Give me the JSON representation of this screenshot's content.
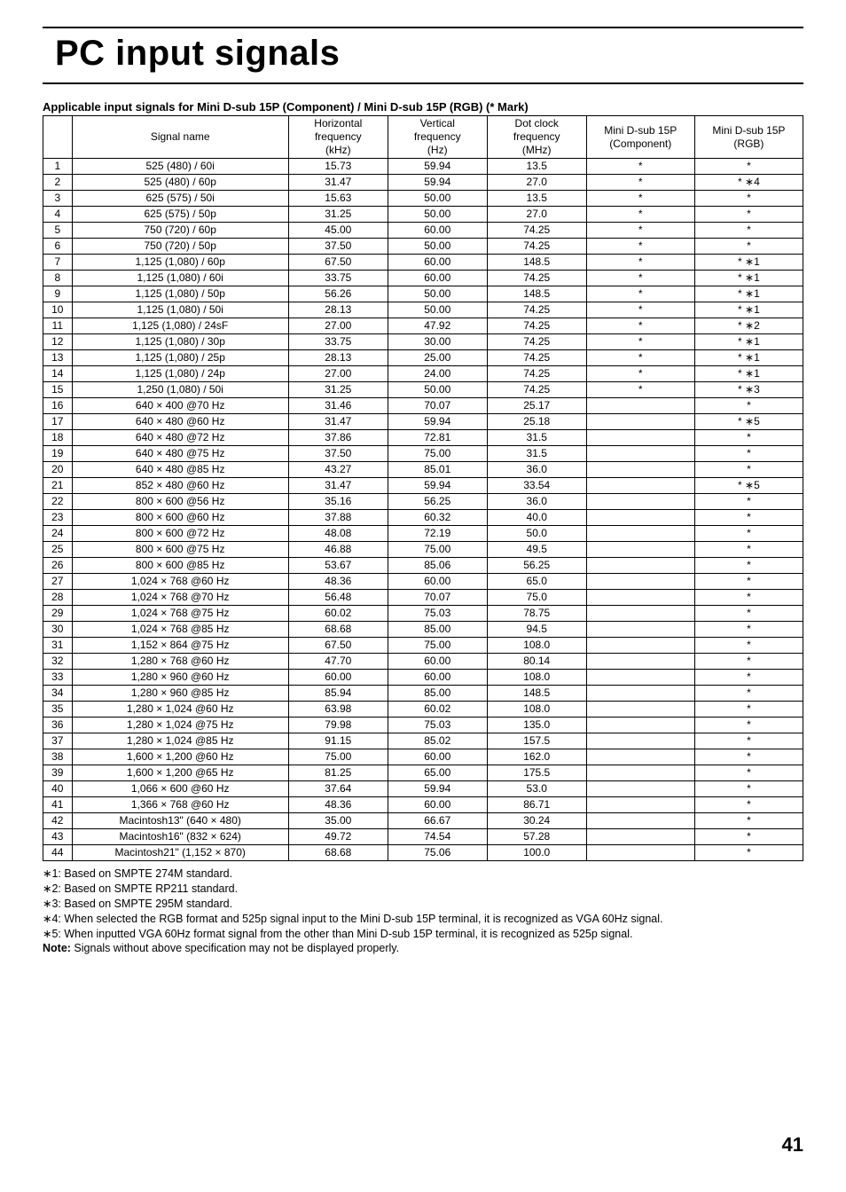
{
  "title": "PC input signals",
  "subtitle": "Applicable input signals for Mini D-sub 15P (Component) / Mini D-sub 15P (RGB) (* Mark)",
  "headers": {
    "idx": "",
    "signal": "Signal name",
    "hfreq": "Horizontal\nfrequency\n(kHz)",
    "vfreq": "Vertical\nfrequency\n(Hz)",
    "dclk": "Dot clock\nfrequency\n(MHz)",
    "comp": "Mini D-sub 15P\n(Component)",
    "rgb": "Mini D-sub 15P\n(RGB)"
  },
  "star": "*",
  "star_note": "∗",
  "rows": [
    {
      "i": "1",
      "s": "525 (480) / 60i",
      "h": "15.73",
      "v": "59.94",
      "d": "13.5",
      "c": "*",
      "r": "*"
    },
    {
      "i": "2",
      "s": "525 (480) / 60p",
      "h": "31.47",
      "v": "59.94",
      "d": "27.0",
      "c": "*",
      "r": "*  ∗4"
    },
    {
      "i": "3",
      "s": "625 (575) / 50i",
      "h": "15.63",
      "v": "50.00",
      "d": "13.5",
      "c": "*",
      "r": "*"
    },
    {
      "i": "4",
      "s": "625 (575) / 50p",
      "h": "31.25",
      "v": "50.00",
      "d": "27.0",
      "c": "*",
      "r": "*"
    },
    {
      "i": "5",
      "s": "750 (720) / 60p",
      "h": "45.00",
      "v": "60.00",
      "d": "74.25",
      "c": "*",
      "r": "*"
    },
    {
      "i": "6",
      "s": "750 (720) / 50p",
      "h": "37.50",
      "v": "50.00",
      "d": "74.25",
      "c": "*",
      "r": "*"
    },
    {
      "i": "7",
      "s": "1,125 (1,080) / 60p",
      "h": "67.50",
      "v": "60.00",
      "d": "148.5",
      "c": "*",
      "r": "*  ∗1"
    },
    {
      "i": "8",
      "s": "1,125 (1,080) / 60i",
      "h": "33.75",
      "v": "60.00",
      "d": "74.25",
      "c": "*",
      "r": "*  ∗1"
    },
    {
      "i": "9",
      "s": "1,125 (1,080) / 50p",
      "h": "56.26",
      "v": "50.00",
      "d": "148.5",
      "c": "*",
      "r": "*  ∗1"
    },
    {
      "i": "10",
      "s": "1,125 (1,080) / 50i",
      "h": "28.13",
      "v": "50.00",
      "d": "74.25",
      "c": "*",
      "r": "*  ∗1"
    },
    {
      "i": "11",
      "s": "1,125 (1,080) / 24sF",
      "h": "27.00",
      "v": "47.92",
      "d": "74.25",
      "c": "*",
      "r": "*  ∗2"
    },
    {
      "i": "12",
      "s": "1,125 (1,080) / 30p",
      "h": "33.75",
      "v": "30.00",
      "d": "74.25",
      "c": "*",
      "r": "*  ∗1"
    },
    {
      "i": "13",
      "s": "1,125 (1,080) / 25p",
      "h": "28.13",
      "v": "25.00",
      "d": "74.25",
      "c": "*",
      "r": "*  ∗1"
    },
    {
      "i": "14",
      "s": "1,125 (1,080) / 24p",
      "h": "27.00",
      "v": "24.00",
      "d": "74.25",
      "c": "*",
      "r": "*  ∗1"
    },
    {
      "i": "15",
      "s": "1,250 (1,080) / 50i",
      "h": "31.25",
      "v": "50.00",
      "d": "74.25",
      "c": "*",
      "r": "*  ∗3"
    },
    {
      "i": "16",
      "s": "640 × 400 @70 Hz",
      "h": "31.46",
      "v": "70.07",
      "d": "25.17",
      "c": "",
      "r": "*"
    },
    {
      "i": "17",
      "s": "640 × 480 @60 Hz",
      "h": "31.47",
      "v": "59.94",
      "d": "25.18",
      "c": "",
      "r": "*  ∗5"
    },
    {
      "i": "18",
      "s": "640 × 480 @72 Hz",
      "h": "37.86",
      "v": "72.81",
      "d": "31.5",
      "c": "",
      "r": "*"
    },
    {
      "i": "19",
      "s": "640 × 480 @75 Hz",
      "h": "37.50",
      "v": "75.00",
      "d": "31.5",
      "c": "",
      "r": "*"
    },
    {
      "i": "20",
      "s": "640 × 480 @85 Hz",
      "h": "43.27",
      "v": "85.01",
      "d": "36.0",
      "c": "",
      "r": "*"
    },
    {
      "i": "21",
      "s": "852 × 480 @60 Hz",
      "h": "31.47",
      "v": "59.94",
      "d": "33.54",
      "c": "",
      "r": "*  ∗5"
    },
    {
      "i": "22",
      "s": "800 × 600 @56 Hz",
      "h": "35.16",
      "v": "56.25",
      "d": "36.0",
      "c": "",
      "r": "*"
    },
    {
      "i": "23",
      "s": "800 × 600 @60 Hz",
      "h": "37.88",
      "v": "60.32",
      "d": "40.0",
      "c": "",
      "r": "*"
    },
    {
      "i": "24",
      "s": "800 × 600 @72 Hz",
      "h": "48.08",
      "v": "72.19",
      "d": "50.0",
      "c": "",
      "r": "*"
    },
    {
      "i": "25",
      "s": "800 × 600 @75 Hz",
      "h": "46.88",
      "v": "75.00",
      "d": "49.5",
      "c": "",
      "r": "*"
    },
    {
      "i": "26",
      "s": "800 × 600 @85 Hz",
      "h": "53.67",
      "v": "85.06",
      "d": "56.25",
      "c": "",
      "r": "*"
    },
    {
      "i": "27",
      "s": "1,024 × 768 @60 Hz",
      "h": "48.36",
      "v": "60.00",
      "d": "65.0",
      "c": "",
      "r": "*"
    },
    {
      "i": "28",
      "s": "1,024 × 768 @70 Hz",
      "h": "56.48",
      "v": "70.07",
      "d": "75.0",
      "c": "",
      "r": "*"
    },
    {
      "i": "29",
      "s": "1,024 × 768 @75 Hz",
      "h": "60.02",
      "v": "75.03",
      "d": "78.75",
      "c": "",
      "r": "*"
    },
    {
      "i": "30",
      "s": "1,024 × 768 @85 Hz",
      "h": "68.68",
      "v": "85.00",
      "d": "94.5",
      "c": "",
      "r": "*"
    },
    {
      "i": "31",
      "s": "1,152 × 864 @75 Hz",
      "h": "67.50",
      "v": "75.00",
      "d": "108.0",
      "c": "",
      "r": "*"
    },
    {
      "i": "32",
      "s": "1,280 × 768 @60 Hz",
      "h": "47.70",
      "v": "60.00",
      "d": "80.14",
      "c": "",
      "r": "*"
    },
    {
      "i": "33",
      "s": "1,280 × 960 @60 Hz",
      "h": "60.00",
      "v": "60.00",
      "d": "108.0",
      "c": "",
      "r": "*"
    },
    {
      "i": "34",
      "s": "1,280 × 960 @85 Hz",
      "h": "85.94",
      "v": "85.00",
      "d": "148.5",
      "c": "",
      "r": "*"
    },
    {
      "i": "35",
      "s": "1,280 × 1,024 @60 Hz",
      "h": "63.98",
      "v": "60.02",
      "d": "108.0",
      "c": "",
      "r": "*"
    },
    {
      "i": "36",
      "s": "1,280 × 1,024 @75 Hz",
      "h": "79.98",
      "v": "75.03",
      "d": "135.0",
      "c": "",
      "r": "*"
    },
    {
      "i": "37",
      "s": "1,280 × 1,024 @85 Hz",
      "h": "91.15",
      "v": "85.02",
      "d": "157.5",
      "c": "",
      "r": "*"
    },
    {
      "i": "38",
      "s": "1,600 × 1,200 @60 Hz",
      "h": "75.00",
      "v": "60.00",
      "d": "162.0",
      "c": "",
      "r": "*"
    },
    {
      "i": "39",
      "s": "1,600 × 1,200 @65 Hz",
      "h": "81.25",
      "v": "65.00",
      "d": "175.5",
      "c": "",
      "r": "*"
    },
    {
      "i": "40",
      "s": "1,066 × 600 @60 Hz",
      "h": "37.64",
      "v": "59.94",
      "d": "53.0",
      "c": "",
      "r": "*"
    },
    {
      "i": "41",
      "s": "1,366 × 768 @60 Hz",
      "h": "48.36",
      "v": "60.00",
      "d": "86.71",
      "c": "",
      "r": "*"
    },
    {
      "i": "42",
      "s": "Macintosh13\" (640 × 480)",
      "h": "35.00",
      "v": "66.67",
      "d": "30.24",
      "c": "",
      "r": "*"
    },
    {
      "i": "43",
      "s": "Macintosh16\" (832 × 624)",
      "h": "49.72",
      "v": "74.54",
      "d": "57.28",
      "c": "",
      "r": "*"
    },
    {
      "i": "44",
      "s": "Macintosh21\" (1,152 × 870)",
      "h": "68.68",
      "v": "75.06",
      "d": "100.0",
      "c": "",
      "r": "*"
    }
  ],
  "notes": [
    "∗1: Based on SMPTE 274M standard.",
    "∗2: Based on SMPTE RP211 standard.",
    "∗3: Based on SMPTE 295M standard.",
    "∗4: When selected the RGB format and 525p signal input to the Mini D-sub 15P terminal, it is recognized as VGA 60Hz signal.",
    "∗5: When inputted VGA 60Hz format signal from the other than Mini D-sub 15P terminal, it is recognized as 525p signal."
  ],
  "note_final_label": "Note:",
  "note_final_text": " Signals without above specification may not be displayed properly.",
  "page_number": "41"
}
